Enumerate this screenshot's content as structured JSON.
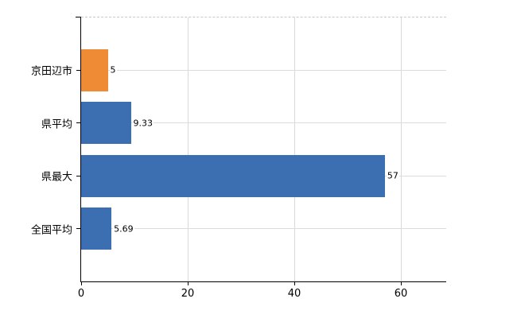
{
  "chart_data": {
    "type": "bar",
    "orientation": "horizontal",
    "title": "",
    "xlabel": "",
    "ylabel": "",
    "categories": [
      "京田辺市",
      "県平均",
      "県最大",
      "全国平均"
    ],
    "values": [
      5,
      9.33,
      57,
      5.69
    ],
    "value_labels": [
      "5",
      "9.33",
      "57",
      "5.69"
    ],
    "bar_colors": [
      "#ef8a35",
      "#3c6fb2",
      "#3c6fb2",
      "#3c6fb2"
    ],
    "x_ticks": [
      0,
      20,
      40,
      60
    ],
    "xlim": [
      0,
      68.5
    ],
    "grid": true,
    "legend": false
  },
  "colors": {
    "highlight_bar": "#ef8a35",
    "default_bar": "#3c6fb2",
    "gridline": "#d9d9d9",
    "axis": "#000000",
    "background": "#ffffff"
  }
}
